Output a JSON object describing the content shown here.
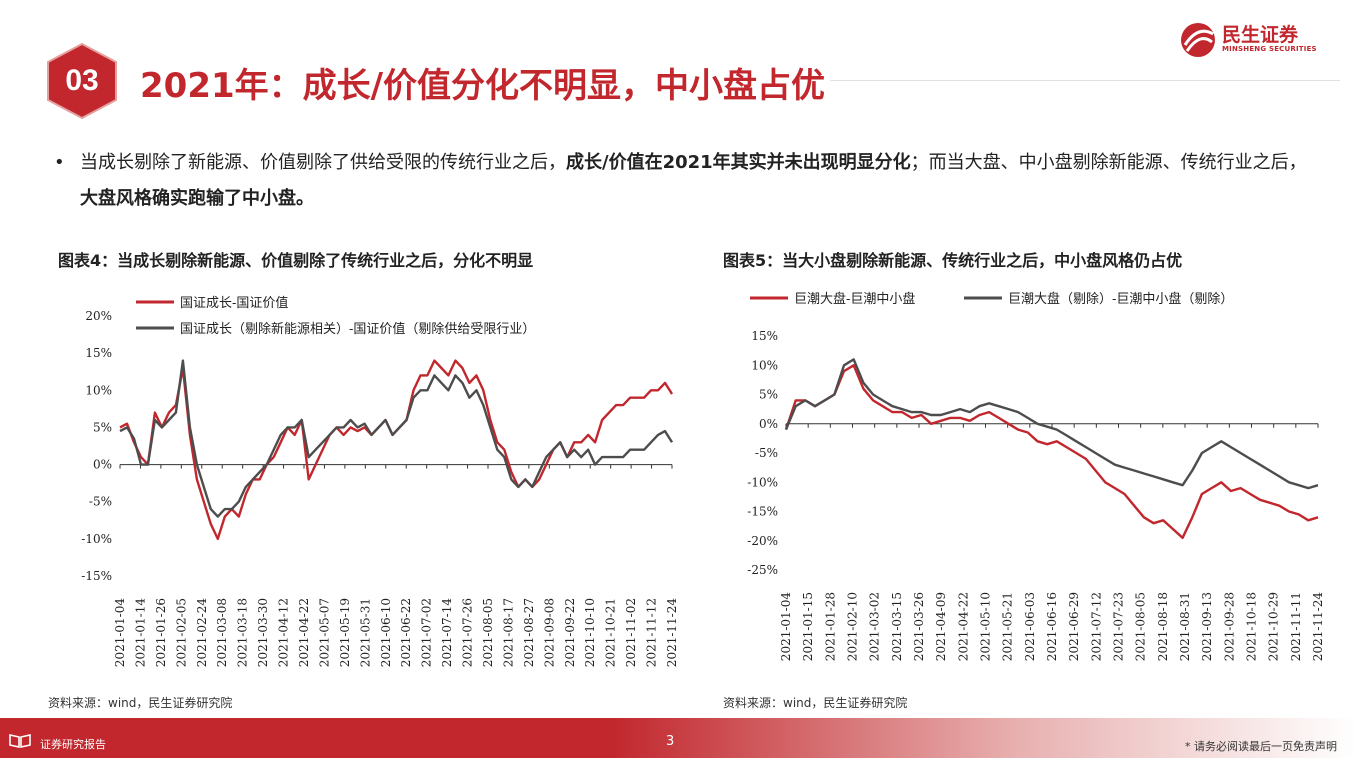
{
  "header": {
    "section_number": "03",
    "title": "2021年：成长/价值分化不明显，中小盘占优",
    "logo_cn": "民生证券",
    "logo_en": "MINSHENG SECURITIES"
  },
  "bullet": {
    "part1": "当成长剔除了新能源、价值剔除了供给受限的传统行业之后，",
    "bold1": "成长/价值在2021年其实并未出现明显分化",
    "part2": "；而当大盘、中小盘剔除新能源、传统行业之后，",
    "bold2": "大盘风格确实跑输了中小盘。"
  },
  "colors": {
    "red": "#c1272d",
    "gray": "#4d4d4d",
    "accent": "#c1272d"
  },
  "chart_data": [
    {
      "type": "line",
      "title": "图表4：当成长剔除新能源、价值剔除了传统行业之后，分化不明显",
      "source": "资料来源：wind，民生证券研究院",
      "ylim": [
        -15,
        20
      ],
      "yticks": [
        "20%",
        "15%",
        "10%",
        "5%",
        "0%",
        "-5%",
        "-10%",
        "-15%"
      ],
      "xticks": [
        "2021-01-04",
        "2021-01-14",
        "2021-01-26",
        "2021-02-05",
        "2021-02-24",
        "2021-03-08",
        "2021-03-18",
        "2021-03-30",
        "2021-04-12",
        "2021-04-22",
        "2021-05-07",
        "2021-05-19",
        "2021-05-31",
        "2021-06-10",
        "2021-06-22",
        "2021-07-02",
        "2021-07-14",
        "2021-07-26",
        "2021-08-05",
        "2021-08-17",
        "2021-08-27",
        "2021-09-08",
        "2021-09-22",
        "2021-10-10",
        "2021-10-21",
        "2021-11-02",
        "2021-11-12",
        "2021-11-24"
      ],
      "legend_position": "top-left",
      "series": [
        {
          "name": "国证成长-国证价值",
          "color": "#c1272d",
          "values": [
            5,
            5.5,
            3,
            1,
            0,
            7,
            5,
            7,
            8,
            13,
            4,
            -2,
            -5,
            -8,
            -10,
            -7,
            -6,
            -7,
            -4,
            -2,
            -2,
            0,
            1,
            3,
            5,
            4,
            6,
            -2,
            0,
            2,
            4,
            5,
            4,
            5,
            4.5,
            5,
            4,
            5,
            6,
            4,
            5,
            6,
            10,
            12,
            12,
            14,
            13,
            12,
            14,
            13,
            11,
            12,
            10,
            6,
            3,
            2,
            -1,
            -3,
            -2,
            -3,
            -2,
            0,
            2,
            3,
            1,
            3,
            3,
            4,
            3,
            6,
            7,
            8,
            8,
            9,
            9,
            9,
            10,
            10,
            11,
            9.5
          ]
        },
        {
          "name": "国证成长（剔除新能源相关）-国证价值（剔除供给受限行业）",
          "color": "#4d4d4d",
          "values": [
            4.5,
            5,
            3.5,
            0,
            0,
            6,
            5,
            6,
            7,
            14,
            5,
            0,
            -3,
            -6,
            -7,
            -6,
            -6,
            -5,
            -3,
            -2,
            -1,
            0,
            2,
            4,
            5,
            5,
            6,
            1,
            2,
            3,
            4,
            5,
            5,
            6,
            5,
            5.5,
            4,
            5,
            6,
            4,
            5,
            6,
            9,
            10,
            10,
            12,
            11,
            10,
            12,
            11,
            9,
            10,
            8,
            5,
            2,
            1,
            -2,
            -3,
            -2,
            -3,
            -1,
            1,
            2,
            3,
            1,
            2,
            1,
            2,
            0,
            1,
            1,
            1,
            1,
            2,
            2,
            2,
            3,
            4,
            4.5,
            3
          ]
        }
      ]
    },
    {
      "type": "line",
      "title": "图表5：当大小盘剔除新能源、传统行业之后，中小盘风格仍占优",
      "source": "资料来源：wind，民生证券研究院",
      "ylim": [
        -25,
        15
      ],
      "yticks": [
        "15%",
        "10%",
        "5%",
        "0%",
        "-5%",
        "-10%",
        "-15%",
        "-20%",
        "-25%"
      ],
      "xticks": [
        "2021-01-04",
        "2021-01-15",
        "2021-01-28",
        "2021-02-10",
        "2021-03-02",
        "2021-03-15",
        "2021-03-26",
        "2021-04-09",
        "2021-04-22",
        "2021-05-10",
        "2021-05-21",
        "2021-06-03",
        "2021-06-16",
        "2021-06-29",
        "2021-07-12",
        "2021-07-23",
        "2021-08-05",
        "2021-08-18",
        "2021-08-31",
        "2021-09-13",
        "2021-09-28",
        "2021-10-18",
        "2021-10-29",
        "2021-11-11",
        "2021-11-24"
      ],
      "legend_position": "top",
      "series": [
        {
          "name": "巨潮大盘-巨潮中小盘",
          "color": "#c1272d",
          "values": [
            -1,
            4,
            4,
            3,
            4,
            5,
            9,
            10,
            6,
            4,
            3,
            2,
            2,
            1,
            1.5,
            0,
            0.5,
            1,
            1,
            0.5,
            1.5,
            2,
            1,
            0,
            -1,
            -1.5,
            -3,
            -3.5,
            -3,
            -4,
            -5,
            -6,
            -8,
            -10,
            -11,
            -12,
            -14,
            -16,
            -17,
            -16.5,
            -18,
            -19.5,
            -16,
            -12,
            -11,
            -10,
            -11.5,
            -11,
            -12,
            -13,
            -13.5,
            -14,
            -15,
            -15.5,
            -16.5,
            -16
          ]
        },
        {
          "name": "巨潮大盘（剔除）-巨潮中小盘（剔除）",
          "color": "#4d4d4d",
          "values": [
            -1,
            3,
            4,
            3,
            4,
            5,
            10,
            11,
            7,
            5,
            4,
            3,
            2.5,
            2,
            2,
            1.5,
            1.5,
            2,
            2.5,
            2,
            3,
            3.5,
            3,
            2.5,
            2,
            1,
            0,
            -0.5,
            -1,
            -2,
            -3,
            -4,
            -5,
            -6,
            -7,
            -7.5,
            -8,
            -8.5,
            -9,
            -9.5,
            -10,
            -10.5,
            -8,
            -5,
            -4,
            -3,
            -4,
            -5,
            -6,
            -7,
            -8,
            -9,
            -10,
            -10.5,
            -11,
            -10.5
          ]
        }
      ]
    }
  ],
  "footer": {
    "label": "证券研究报告",
    "page": "3",
    "disclaimer": "* 请务必阅读最后一页免责声明"
  }
}
